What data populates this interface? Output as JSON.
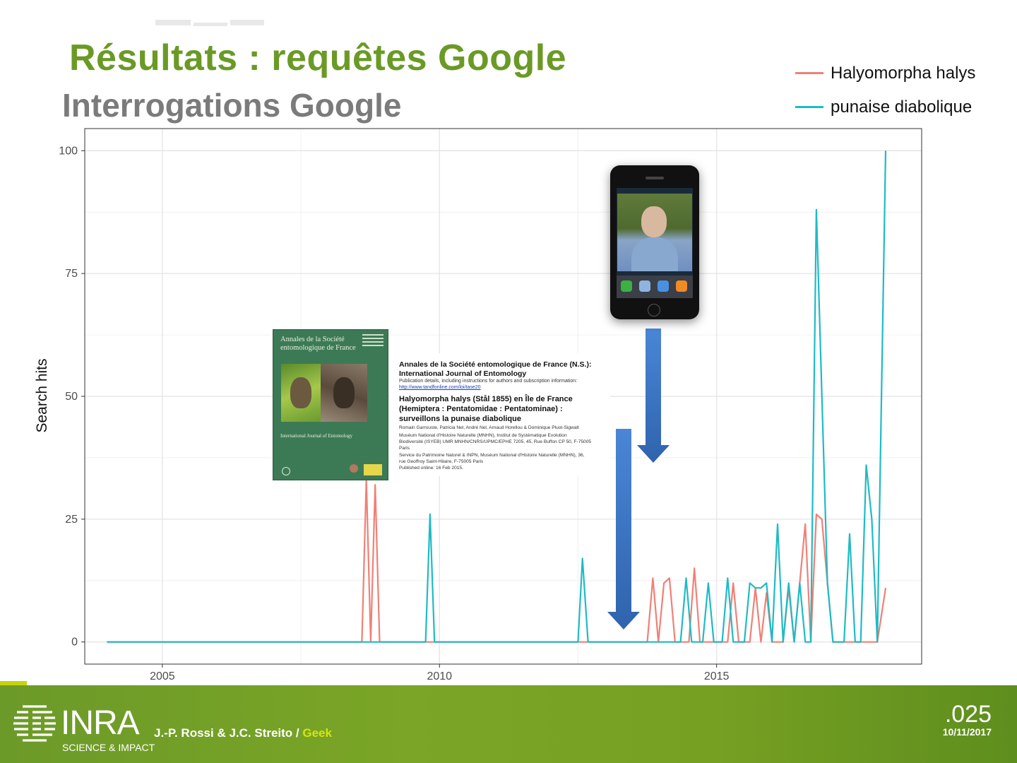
{
  "title": "Résultats : requêtes Google",
  "subtitle": "Interrogations Google",
  "chart_data": {
    "type": "line",
    "xlabel": "",
    "ylabel": "Search hits",
    "xlim": [
      2003.6,
      2018.7
    ],
    "ylim": [
      -4.5,
      104.5
    ],
    "x_ticks": [
      2005,
      2010,
      2015
    ],
    "y_ticks": [
      0,
      25,
      50,
      75,
      100
    ],
    "grid": true,
    "legend_position": "top-right",
    "series": [
      {
        "name": "Halyomorpha halys",
        "color": "#f08076",
        "points": [
          [
            2004.0,
            0
          ],
          [
            2008.6,
            0
          ],
          [
            2008.68,
            33
          ],
          [
            2008.76,
            0
          ],
          [
            2008.84,
            32
          ],
          [
            2008.92,
            0
          ],
          [
            2013.75,
            0
          ],
          [
            2013.85,
            13
          ],
          [
            2013.95,
            0
          ],
          [
            2014.05,
            12
          ],
          [
            2014.15,
            13
          ],
          [
            2014.25,
            0
          ],
          [
            2014.5,
            0
          ],
          [
            2014.6,
            15
          ],
          [
            2014.7,
            0
          ],
          [
            2015.2,
            0
          ],
          [
            2015.3,
            12
          ],
          [
            2015.4,
            0
          ],
          [
            2015.6,
            0
          ],
          [
            2015.7,
            11
          ],
          [
            2015.8,
            0
          ],
          [
            2015.9,
            10
          ],
          [
            2016.0,
            0
          ],
          [
            2016.2,
            0
          ],
          [
            2016.3,
            11
          ],
          [
            2016.4,
            0
          ],
          [
            2016.6,
            24
          ],
          [
            2016.7,
            0
          ],
          [
            2016.8,
            26
          ],
          [
            2016.9,
            25
          ],
          [
            2017.0,
            12
          ],
          [
            2017.1,
            0
          ],
          [
            2017.3,
            0
          ],
          [
            2017.5,
            0
          ],
          [
            2017.7,
            0
          ],
          [
            2017.9,
            0
          ],
          [
            2018.05,
            11
          ]
        ]
      },
      {
        "name": "punaise diabolique",
        "color": "#1ebbc4",
        "points": [
          [
            2004.0,
            0
          ],
          [
            2009.75,
            0
          ],
          [
            2009.83,
            26
          ],
          [
            2009.91,
            0
          ],
          [
            2012.5,
            0
          ],
          [
            2012.58,
            17
          ],
          [
            2012.68,
            0
          ],
          [
            2014.35,
            0
          ],
          [
            2014.45,
            13
          ],
          [
            2014.55,
            0
          ],
          [
            2014.75,
            0
          ],
          [
            2014.85,
            12
          ],
          [
            2014.95,
            0
          ],
          [
            2015.1,
            0
          ],
          [
            2015.2,
            13
          ],
          [
            2015.3,
            0
          ],
          [
            2015.5,
            0
          ],
          [
            2015.6,
            12
          ],
          [
            2015.7,
            11
          ],
          [
            2015.8,
            11
          ],
          [
            2015.9,
            12
          ],
          [
            2016.0,
            0
          ],
          [
            2016.1,
            24
          ],
          [
            2016.2,
            0
          ],
          [
            2016.3,
            12
          ],
          [
            2016.4,
            0
          ],
          [
            2016.5,
            12
          ],
          [
            2016.6,
            0
          ],
          [
            2016.7,
            0
          ],
          [
            2016.8,
            88
          ],
          [
            2017.0,
            12
          ],
          [
            2017.1,
            0
          ],
          [
            2017.3,
            0
          ],
          [
            2017.4,
            22
          ],
          [
            2017.5,
            0
          ],
          [
            2017.6,
            0
          ],
          [
            2017.7,
            36
          ],
          [
            2017.8,
            25
          ],
          [
            2017.9,
            0
          ],
          [
            2018.05,
            100
          ]
        ]
      }
    ]
  },
  "images": {
    "journal_cover": {
      "title": "Annales de la Société entomologique de France",
      "subtitle": "International Journal of Entomology"
    },
    "article": {
      "journal_line1": "Annales de la Société entomologique de France (N.S.):",
      "journal_line2": "International Journal of Entomology",
      "publication_details": "Publication details, including instructions for authors and subscription information:",
      "link": "http://www.tandfonline.com/loi/tase20",
      "title_line1": "Halyomorpha halys (Stål 1855) en Île de France",
      "title_line2": "(Hemiptera : Pentatomidae : Pentatominae) :",
      "title_line3": "surveillons la punaise diabolique",
      "authors": "Romain Garrouste, Patricia Nel, André Nel, Arnaud Horellou & Dominique Pluot-Sigwalt",
      "affil1a": "Muséum National d'Histoire Naturelle (MNHN), Institut de Systématique Evolution",
      "affil1b": "Biodiversité (ISYEB) UMR MNHN/CNRS/UPMC/EPHE 7205, 45, Rue Buffon CP 50, F-75005",
      "affil1c": "Paris",
      "affil2a": "Service du Patrimoine Naturel & INPN, Muséum National d'Histoire Naturelle (MNHN), 36,",
      "affil2b": "rue Geoffroy Saint-Hilaire, F-75005 Paris",
      "published": "Published online: 16 Feb 2015."
    },
    "arrow_color": "#3f78c6"
  },
  "footer": {
    "logo_text": "INRA",
    "logo_tagline": "SCIENCE & IMPACT",
    "authors": "J.-P. Rossi & J.C. Streito / ",
    "authors_highlight": "Geek",
    "slide_number": ".025",
    "date": "10/11/2017"
  }
}
